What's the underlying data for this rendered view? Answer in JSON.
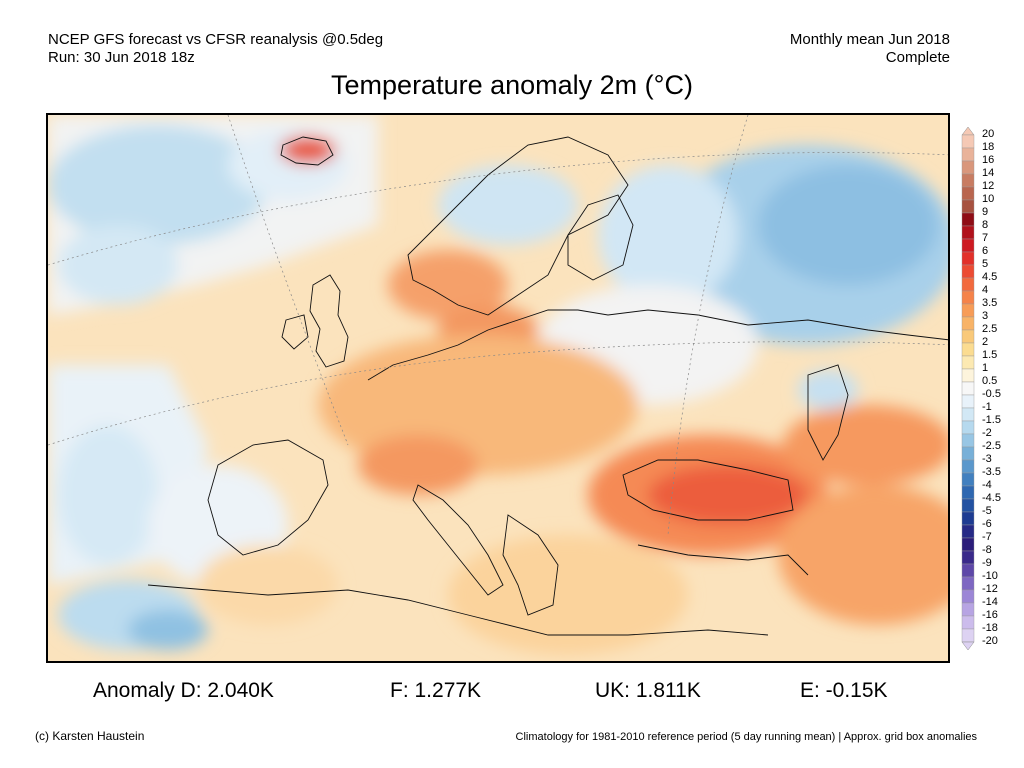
{
  "header": {
    "left_line1": "NCEP GFS forecast vs CFSR reanalysis @0.5deg",
    "left_line2": "Run: 30 Jun 2018 18z",
    "right_line1": "Monthly mean Jun 2018",
    "right_line2": "Complete"
  },
  "title": "Temperature anomaly 2m (°C)",
  "colorbar": {
    "labels": [
      "20",
      "18",
      "16",
      "14",
      "12",
      "10",
      "9",
      "8",
      "7",
      "6",
      "5",
      "4.5",
      "4",
      "3.5",
      "3",
      "2.5",
      "2",
      "1.5",
      "1",
      "0.5",
      "-0.5",
      "-1",
      "-1.5",
      "-2",
      "-2.5",
      "-3",
      "-3.5",
      "-4",
      "-4.5",
      "-5",
      "-6",
      "-7",
      "-8",
      "-9",
      "-10",
      "-12",
      "-14",
      "-16",
      "-18",
      "-20"
    ],
    "colors": [
      "#f5c9b5",
      "#e9b39a",
      "#d9977c",
      "#c87c62",
      "#b9664f",
      "#a75240",
      "#8f0d16",
      "#b0121c",
      "#cd1a22",
      "#e2302a",
      "#ec4b33",
      "#f26a3e",
      "#f5834a",
      "#f79c57",
      "#f8b367",
      "#f9c97a",
      "#fbdc91",
      "#fce9b2",
      "#fdf4dc",
      "#f7f7f7",
      "#e8f2fa",
      "#d2e8f5",
      "#b6d9ee",
      "#98c6e4",
      "#78b0d8",
      "#5b98cc",
      "#4280bf",
      "#2f68b1",
      "#2352a2",
      "#1e3c92",
      "#262a86",
      "#2b1d7a",
      "#3a2a8a",
      "#5e48a8",
      "#7e67c2",
      "#9c86d6",
      "#b7a4e3",
      "#ccbcec",
      "#ddd2f2"
    ]
  },
  "stats": {
    "d": "Anomaly D: 2.040K",
    "f": "F: 1.277K",
    "uk": "UK: 1.811K",
    "e": "E: -0.15K"
  },
  "footer": {
    "left": "(c) Karsten Haustein",
    "right": "Climatology for 1981-2010 reference period (5 day running mean) | Approx. grid box anomalies"
  }
}
